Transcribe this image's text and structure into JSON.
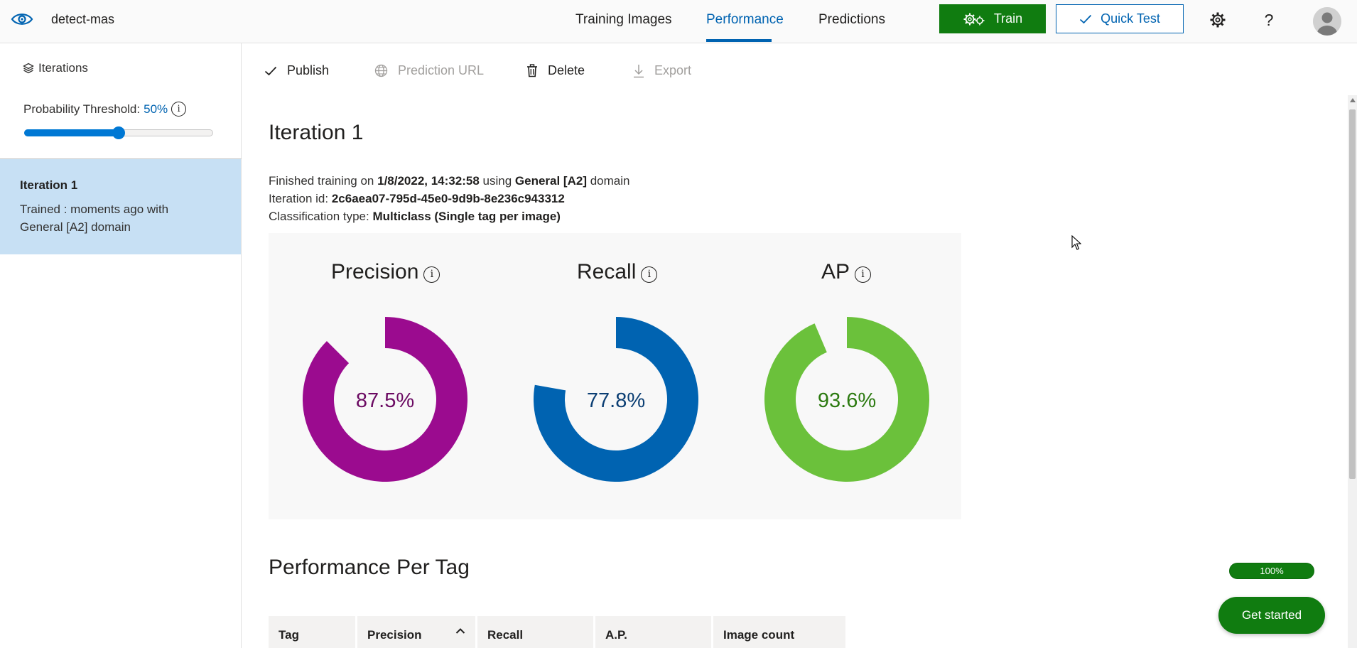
{
  "app": {
    "project_name": "detect-mas",
    "nav_tabs": [
      {
        "label": "Training Images",
        "active": false
      },
      {
        "label": "Performance",
        "active": true
      },
      {
        "label": "Predictions",
        "active": false
      }
    ],
    "train_label": "Train",
    "quick_test_label": "Quick Test",
    "icons": [
      "eye-logo-icon",
      "gears-icon",
      "checkmark-icon",
      "settings-gear-icon",
      "help-icon",
      "user-avatar-icon"
    ]
  },
  "sidebar": {
    "iterations_label": "Iterations",
    "threshold_label": "Probability Threshold:",
    "threshold_value": "50%",
    "threshold_fraction": 0.5,
    "items": [
      {
        "title": "Iteration 1",
        "description": "Trained : moments ago with General [A2] domain",
        "selected": true
      }
    ]
  },
  "toolbar": {
    "publish": "Publish",
    "prediction_url": "Prediction URL",
    "delete": "Delete",
    "export": "Export"
  },
  "main": {
    "title": "Iteration 1",
    "finished_prefix": "Finished training on",
    "finished_date": "1/8/2022, 14:32:58",
    "using_word": "using",
    "domain_name": "General [A2]",
    "domain_word": "domain",
    "iteration_id_label": "Iteration id:",
    "iteration_id": "2c6aea07-795d-45e0-9d9b-8e236c943312",
    "classification_label": "Classification type:",
    "classification_value": "Multiclass (Single tag per image)"
  },
  "metrics": [
    {
      "label": "Precision",
      "value": 87.5,
      "display": "87.5%",
      "color": "#9b0b8f",
      "text_color": "#6b0a62"
    },
    {
      "label": "Recall",
      "value": 77.8,
      "display": "77.8%",
      "color": "#0063b1",
      "text_color": "#0b3e73"
    },
    {
      "label": "AP",
      "value": 93.6,
      "display": "93.6%",
      "color": "#6bc13b",
      "text_color": "#2c7a10"
    }
  ],
  "per_tag": {
    "title": "Performance Per Tag",
    "progress_label": "100%",
    "progress_fraction": 1.0,
    "columns": [
      "Tag",
      "Precision",
      "Recall",
      "A.P.",
      "Image count"
    ]
  },
  "get_started": "Get started"
}
